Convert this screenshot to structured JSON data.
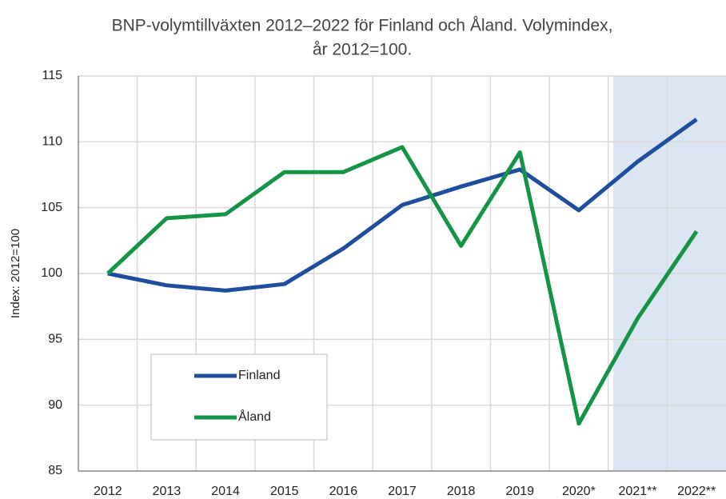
{
  "chart_data": {
    "type": "line",
    "title": [
      "BNP-volymtillväxten 2012–2022 för Finland och Åland. Volymindex,",
      "år 2012=100."
    ],
    "y_label": "Index: 2012=100",
    "categories": [
      "2012",
      "2013",
      "2014",
      "2015",
      "2016",
      "2017",
      "2018",
      "2019",
      "2020*",
      "2021**",
      "2022**"
    ],
    "series": [
      {
        "name": "Finland",
        "color": "#1f4e9c",
        "values": [
          100,
          99.1,
          98.7,
          99.2,
          101.9,
          105.2,
          106.6,
          107.9,
          104.8,
          108.5,
          111.7
        ]
      },
      {
        "name": "Åland",
        "color": "#139447",
        "values": [
          100,
          104.2,
          104.5,
          107.7,
          107.7,
          109.6,
          102.1,
          109.2,
          88.6,
          96.6,
          103.2
        ]
      }
    ],
    "ylim": [
      85,
      115
    ],
    "yticks": [
      85,
      90,
      95,
      100,
      105,
      110,
      115
    ],
    "grid": true
  }
}
